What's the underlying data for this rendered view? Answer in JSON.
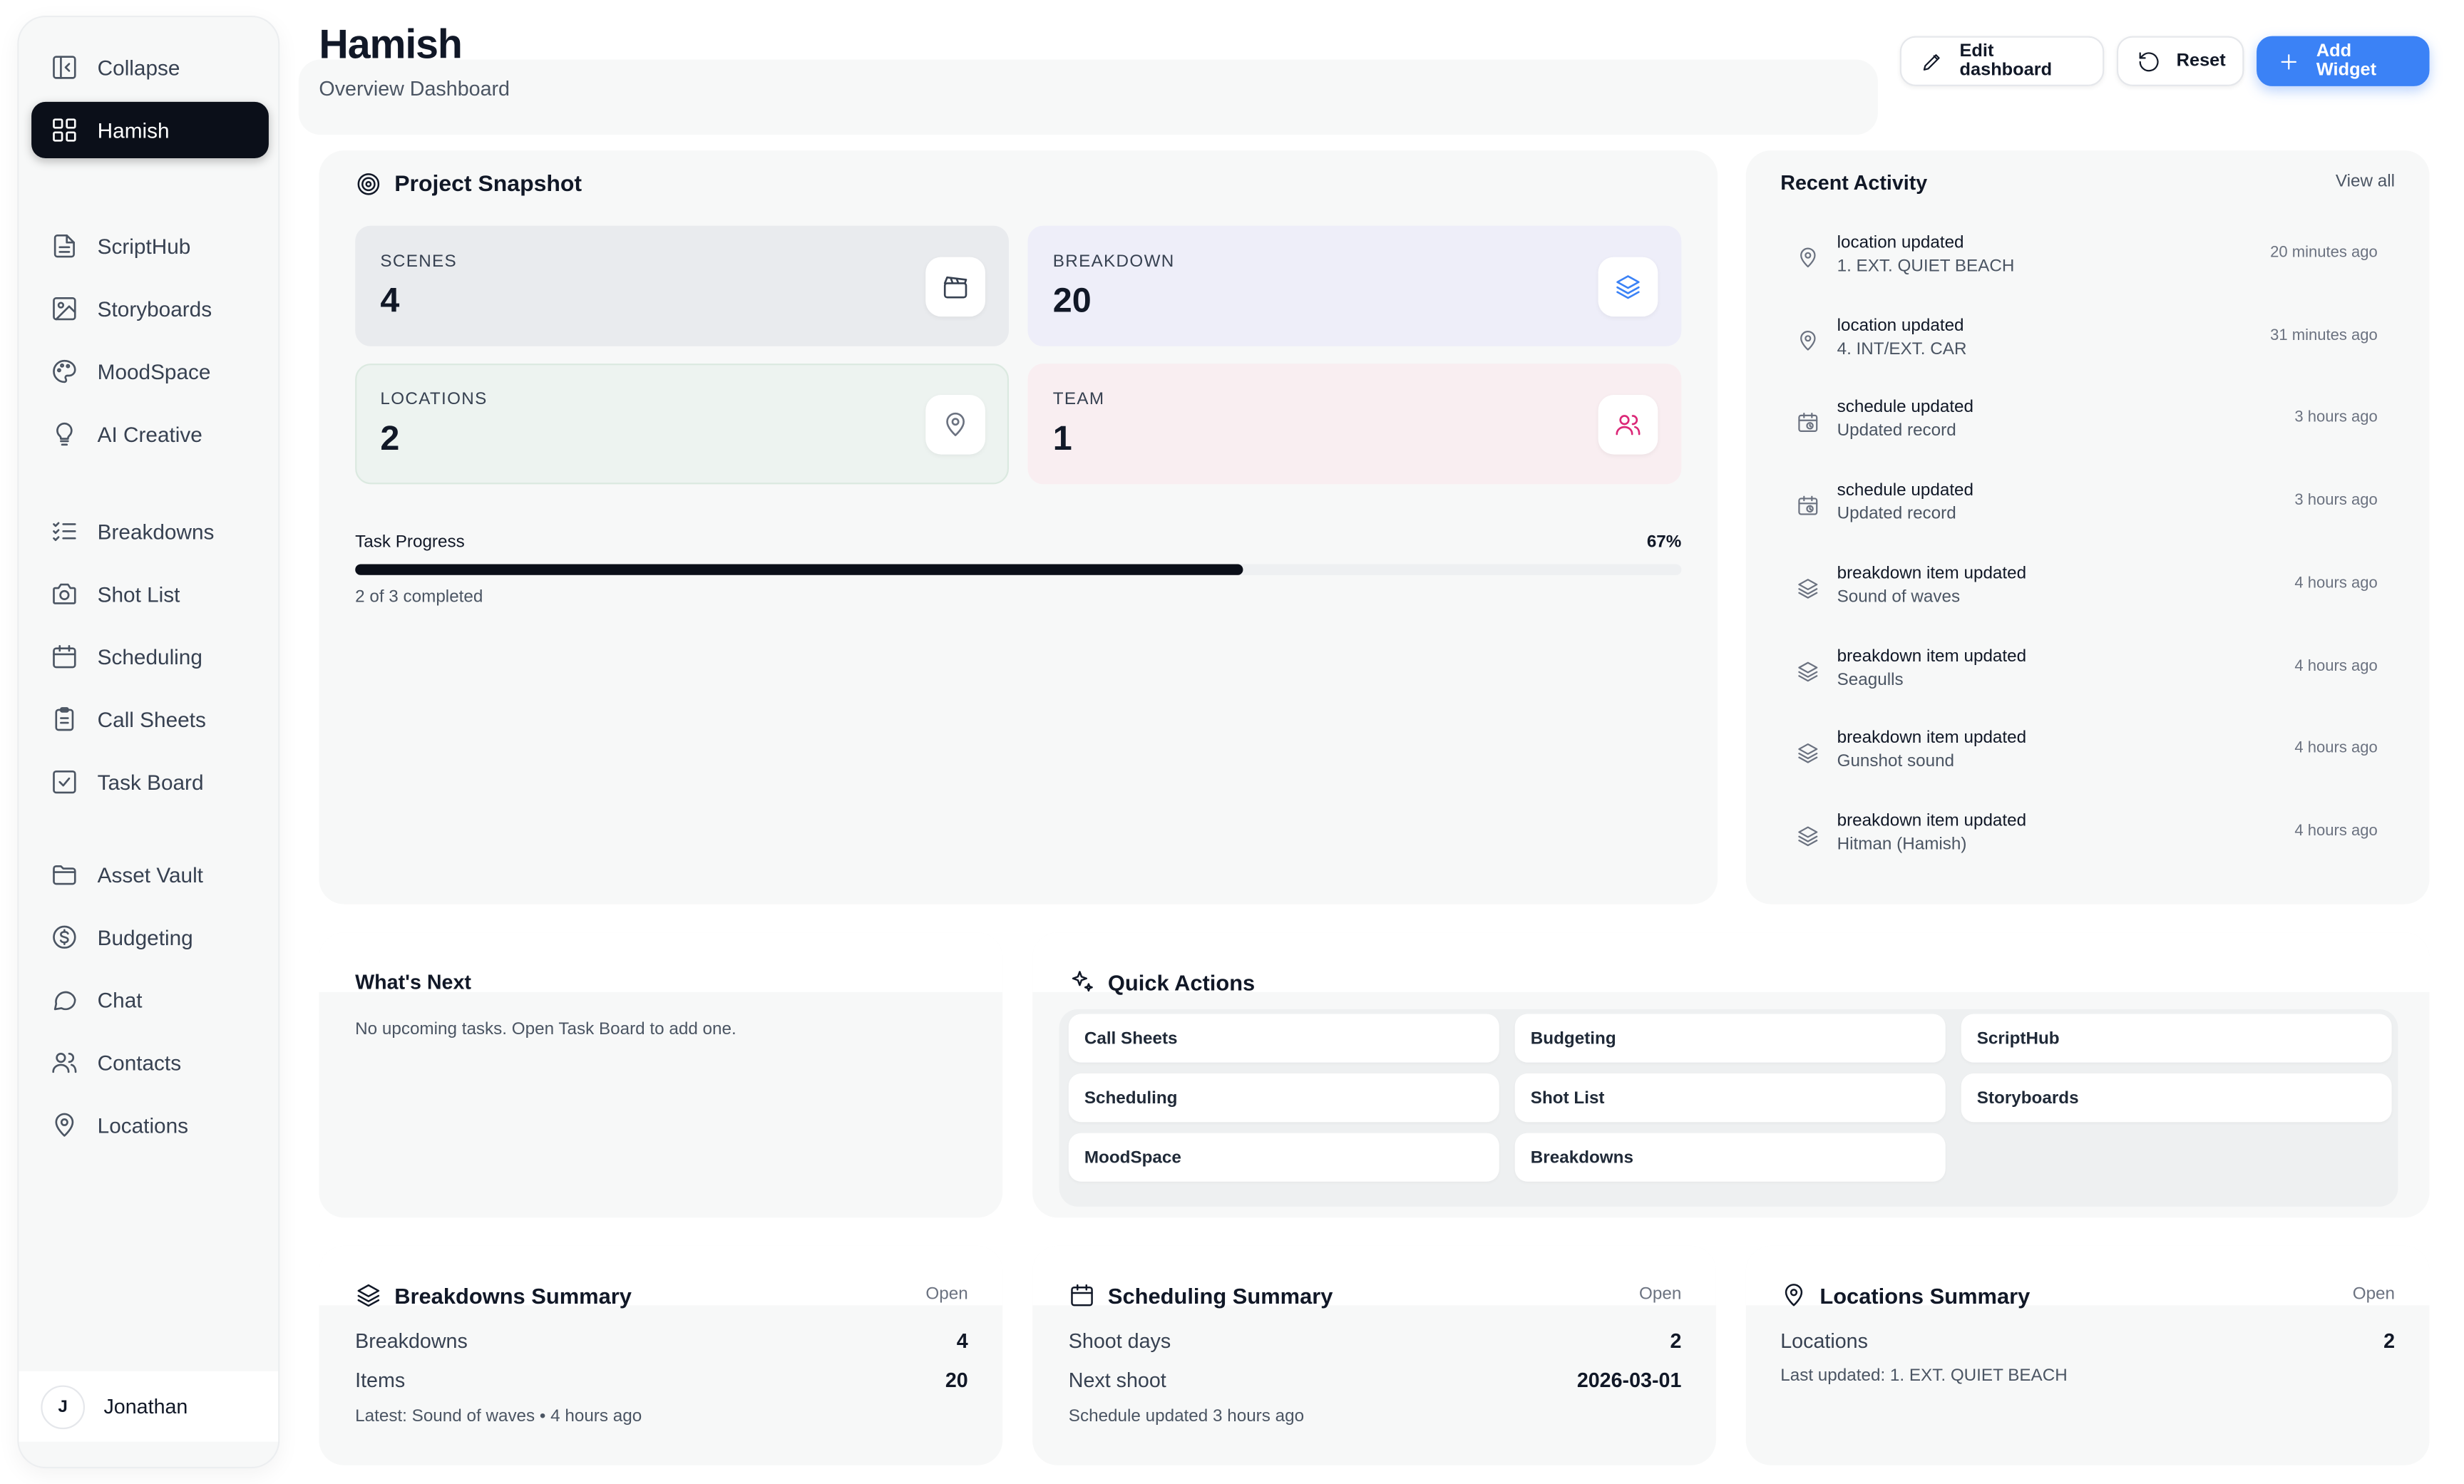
{
  "sidebar": {
    "collapse_label": "Collapse",
    "project_label": "Hamish",
    "items": [
      {
        "label": "ScriptHub",
        "icon": "file-text-icon"
      },
      {
        "label": "Storyboards",
        "icon": "image-icon"
      },
      {
        "label": "MoodSpace",
        "icon": "palette-icon"
      },
      {
        "label": "AI Creative",
        "icon": "lightbulb-icon"
      },
      {
        "label": "Breakdowns",
        "icon": "list-checks-icon"
      },
      {
        "label": "Shot List",
        "icon": "camera-icon"
      },
      {
        "label": "Scheduling",
        "icon": "calendar-icon"
      },
      {
        "label": "Call Sheets",
        "icon": "clipboard-icon"
      },
      {
        "label": "Task Board",
        "icon": "check-square-icon"
      },
      {
        "label": "Asset Vault",
        "icon": "folder-icon"
      },
      {
        "label": "Budgeting",
        "icon": "dollar-circle-icon"
      },
      {
        "label": "Chat",
        "icon": "chat-bubble-icon"
      },
      {
        "label": "Contacts",
        "icon": "users-icon"
      },
      {
        "label": "Locations",
        "icon": "map-pin-icon"
      }
    ],
    "user": {
      "initial": "J",
      "name": "Jonathan"
    }
  },
  "header": {
    "title": "Hamish",
    "subtitle": "Overview Dashboard",
    "edit_label": "Edit dashboard",
    "reset_label": "Reset",
    "add_label": "Add Widget"
  },
  "snapshot": {
    "title": "Project Snapshot",
    "stats": [
      {
        "label": "SCENES",
        "value": "4",
        "icon": "clapperboard-icon"
      },
      {
        "label": "BREAKDOWN",
        "value": "20",
        "icon": "layers-icon"
      },
      {
        "label": "LOCATIONS",
        "value": "2",
        "icon": "map-pin-icon"
      },
      {
        "label": "TEAM",
        "value": "1",
        "icon": "users-icon"
      }
    ],
    "progress_label": "Task Progress",
    "progress_pct_label": "67%",
    "progress_fraction": 0.67,
    "progress_sub": "2 of 3 completed"
  },
  "activity": {
    "title": "Recent Activity",
    "view_all": "View all",
    "items": [
      {
        "title": "location updated",
        "sub": "1. EXT. QUIET BEACH",
        "time": "20 minutes ago",
        "icon": "map-pin-icon"
      },
      {
        "title": "location updated",
        "sub": "4. INT/EXT. CAR",
        "time": "31 minutes ago",
        "icon": "map-pin-icon"
      },
      {
        "title": "schedule updated",
        "sub": "Updated record",
        "time": "3 hours ago",
        "icon": "calendar-clock-icon"
      },
      {
        "title": "schedule updated",
        "sub": "Updated record",
        "time": "3 hours ago",
        "icon": "calendar-clock-icon"
      },
      {
        "title": "breakdown item updated",
        "sub": "Sound of waves",
        "time": "4 hours ago",
        "icon": "layers-icon"
      },
      {
        "title": "breakdown item updated",
        "sub": "Seagulls",
        "time": "4 hours ago",
        "icon": "layers-icon"
      },
      {
        "title": "breakdown item updated",
        "sub": "Gunshot sound",
        "time": "4 hours ago",
        "icon": "layers-icon"
      },
      {
        "title": "breakdown item updated",
        "sub": "Hitman (Hamish)",
        "time": "4 hours ago",
        "icon": "layers-icon"
      }
    ]
  },
  "whats_next": {
    "title": "What's Next",
    "empty_text": "No upcoming tasks. Open Task Board to add one."
  },
  "quick_actions": {
    "title": "Quick Actions",
    "items": [
      "Call Sheets",
      "Budgeting",
      "ScriptHub",
      "Scheduling",
      "Shot List",
      "Storyboards",
      "MoodSpace",
      "Breakdowns"
    ]
  },
  "breakdowns_summary": {
    "title": "Breakdowns Summary",
    "open": "Open",
    "rows": [
      {
        "label": "Breakdowns",
        "value": "4"
      },
      {
        "label": "Items",
        "value": "20"
      }
    ],
    "footer": "Latest: Sound of waves • 4 hours ago"
  },
  "scheduling_summary": {
    "title": "Scheduling Summary",
    "open": "Open",
    "rows": [
      {
        "label": "Shoot days",
        "value": "2"
      },
      {
        "label": "Next shoot",
        "value": "2026-03-01"
      }
    ],
    "footer": "Schedule updated 3 hours ago"
  },
  "locations_summary": {
    "title": "Locations Summary",
    "open": "Open",
    "rows": [
      {
        "label": "Locations",
        "value": "2"
      }
    ],
    "footer": "Last updated: 1. EXT. QUIET BEACH"
  },
  "colors": {
    "accent": "#3b82f6",
    "active_nav": "#0b0f19",
    "progress": "#0b0f19"
  }
}
